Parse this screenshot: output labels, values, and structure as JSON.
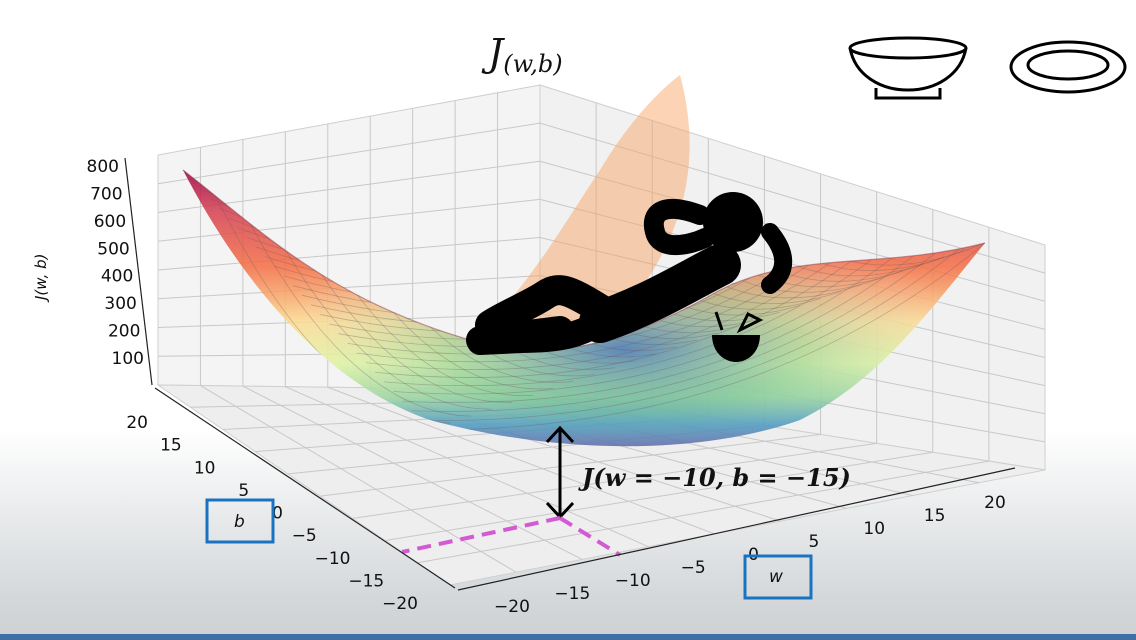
{
  "chart_data": {
    "type": "surface",
    "title": "J(w,b)",
    "title_main": "J",
    "title_sub": "(w,b)",
    "zlabel": "J(w, b)",
    "xlabel": "w",
    "ylabel": "b",
    "x_ticks": [
      "−20",
      "−15",
      "−10",
      "−5",
      "0",
      "5",
      "10",
      "15",
      "20"
    ],
    "y_ticks": [
      "−20",
      "−15",
      "−10",
      "−5",
      "0",
      "5",
      "10",
      "15",
      "20"
    ],
    "z_ticks": [
      "100",
      "200",
      "300",
      "400",
      "500",
      "600",
      "700",
      "800"
    ],
    "xlim": [
      -20,
      20
    ],
    "ylim": [
      -20,
      20
    ],
    "zlim": [
      0,
      800
    ],
    "colormap": "Spectral_r",
    "grid": true,
    "annotation": {
      "text": "J(w = −10, b = −15)",
      "w": -10,
      "b": -15
    }
  },
  "icons": [
    "bowl-icon",
    "plate-icon",
    "relaxing-person-icon",
    "coconut-drink-icon"
  ],
  "colors": {
    "dashed_guides": "#d35ad3",
    "axis_label_boxes": "#1a73c0",
    "bottom_bar": "#3f6fa5"
  }
}
